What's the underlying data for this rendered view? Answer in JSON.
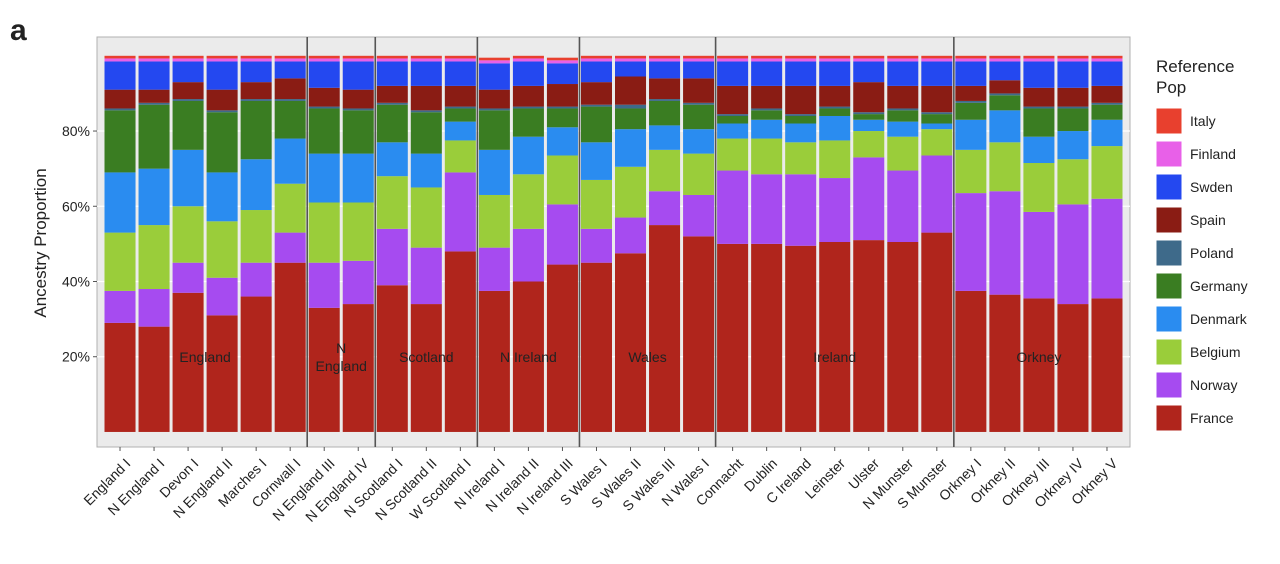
{
  "panel_label": "a",
  "chart_data": {
    "type": "stacked-bar",
    "ylabel": "Ancestry Proportion",
    "ylim": [
      -4,
      105
    ],
    "yticks": [
      {
        "value": 20,
        "label": "20%"
      },
      {
        "value": 40,
        "label": "40%"
      },
      {
        "value": 60,
        "label": "60%"
      },
      {
        "value": 80,
        "label": "80%"
      }
    ],
    "grid": true,
    "categories": [
      "England I",
      "N England I",
      "Devon I",
      "N England II",
      "Marches I",
      "Cornwall I",
      "N England III",
      "N England IV",
      "N Scotland I",
      "N Scotland II",
      "W Scotland I",
      "N Ireland I",
      "N Ireland II",
      "N Ireland III",
      "S Wales I",
      "S Wales II",
      "S Wales III",
      "N Wales I",
      "Connacht",
      "Dublin",
      "C Ireland",
      "Leinster",
      "Ulster",
      "N Munster",
      "S Munster",
      "Orkney I",
      "Orkney II",
      "Orkney III",
      "Orkney IV",
      "Orkney V"
    ],
    "groups": [
      {
        "label": [
          "England"
        ],
        "size": 6
      },
      {
        "label": [
          "N",
          "England"
        ],
        "size": 2
      },
      {
        "label": [
          "Scotland"
        ],
        "size": 3
      },
      {
        "label": [
          "N Ireland"
        ],
        "size": 3
      },
      {
        "label": [
          "Wales"
        ],
        "size": 4
      },
      {
        "label": [
          "Ireland"
        ],
        "size": 7
      },
      {
        "label": [
          "Orkney"
        ],
        "size": 5
      }
    ],
    "legend_title": [
      "Reference",
      "Pop"
    ],
    "legend_position": "right",
    "series": [
      {
        "name": "France",
        "color": "#b0251c",
        "values": [
          29,
          28,
          37,
          31,
          36,
          45,
          33,
          34,
          39,
          34,
          48,
          37.5,
          40,
          44.5,
          45,
          47.5,
          55,
          52,
          50,
          50,
          49.5,
          50.5,
          51,
          50.5,
          53,
          37.5,
          36.5,
          35.5,
          34,
          35.5
        ]
      },
      {
        "name": "Norway",
        "color": "#a64bf0",
        "values": [
          8.5,
          10,
          8,
          10,
          9,
          8,
          12,
          11.5,
          15,
          15,
          21,
          11.5,
          14,
          16,
          9,
          9.5,
          9,
          11,
          19.5,
          18.5,
          19,
          17,
          22,
          19,
          20.5,
          26,
          27.5,
          23,
          26.5,
          26.5
        ]
      },
      {
        "name": "Belgium",
        "color": "#9acd3a",
        "values": [
          15.5,
          17,
          15,
          15,
          14,
          13,
          16,
          15.5,
          14,
          16,
          8.5,
          14,
          14.5,
          13,
          13,
          13.5,
          11,
          11,
          8.5,
          9.5,
          8.5,
          10,
          7,
          9,
          7,
          11.5,
          13,
          13,
          12,
          14
        ]
      },
      {
        "name": "Denmark",
        "color": "#2a8cf0",
        "values": [
          16,
          15,
          15,
          13,
          13.5,
          12,
          13,
          13,
          9,
          9,
          5,
          12,
          10,
          7.5,
          10,
          10,
          6.5,
          6.5,
          4,
          5,
          5,
          6.5,
          3,
          4,
          1.5,
          8,
          8.5,
          7,
          7.5,
          7
        ]
      },
      {
        "name": "Germany",
        "color": "#3a7d22",
        "values": [
          16.5,
          17,
          13,
          16,
          15.5,
          10,
          12,
          11.5,
          10,
          11,
          3.5,
          10.5,
          7.5,
          5,
          9.5,
          5.5,
          6.5,
          6.5,
          2,
          2.5,
          2,
          2,
          1.5,
          3,
          2.5,
          4.5,
          4,
          7.5,
          6,
          4
        ]
      },
      {
        "name": "Poland",
        "color": "#3e6a8a",
        "values": [
          0.5,
          0.5,
          0.5,
          0.5,
          0.5,
          0.5,
          0.5,
          0.5,
          0.5,
          0.5,
          0.5,
          0.5,
          0.5,
          0.5,
          0.5,
          1,
          0.5,
          0.5,
          0.5,
          0.5,
          0.5,
          0.5,
          0.5,
          0.5,
          0.5,
          0.5,
          0.5,
          0.5,
          0.5,
          0.5
        ]
      },
      {
        "name": "Spain",
        "color": "#8a1c14",
        "values": [
          5,
          3.5,
          4.5,
          5.5,
          4.5,
          5.5,
          5,
          5,
          4.5,
          6.5,
          5.5,
          5,
          5.5,
          6,
          6,
          7.5,
          5.5,
          6.5,
          7.5,
          6,
          7.5,
          5.5,
          8,
          6,
          7,
          4,
          3.5,
          5,
          5,
          4.5
        ]
      },
      {
        "name": "Swden",
        "color": "#2448f0",
        "values": [
          7.5,
          7.5,
          5.5,
          7.5,
          5.5,
          4.5,
          7,
          7.5,
          6.5,
          6.5,
          6.5,
          7,
          6.5,
          5.5,
          5.5,
          4,
          4.5,
          4.5,
          6.5,
          6.5,
          6.5,
          6.5,
          5.5,
          6.5,
          6.5,
          6.5,
          5,
          7,
          7,
          6.5
        ]
      },
      {
        "name": "Finland",
        "color": "#e860e8",
        "values": [
          0.8,
          0.8,
          0.8,
          0.8,
          0.8,
          0.8,
          0.8,
          0.8,
          0.8,
          0.8,
          0.8,
          0.8,
          0.8,
          0.8,
          0.8,
          0.8,
          0.8,
          0.8,
          0.8,
          0.8,
          0.8,
          0.8,
          0.8,
          0.8,
          0.8,
          0.8,
          0.8,
          0.8,
          0.8,
          0.8
        ]
      },
      {
        "name": "Italy",
        "color": "#e8402e",
        "values": [
          0.7,
          0.7,
          0.7,
          0.7,
          0.7,
          0.7,
          0.7,
          0.7,
          0.7,
          0.7,
          0.7,
          0.7,
          0.7,
          0.7,
          0.7,
          0.7,
          0.7,
          0.7,
          0.7,
          0.7,
          0.7,
          0.7,
          0.7,
          0.7,
          0.7,
          0.7,
          0.7,
          0.7,
          0.7,
          0.7
        ]
      }
    ]
  }
}
